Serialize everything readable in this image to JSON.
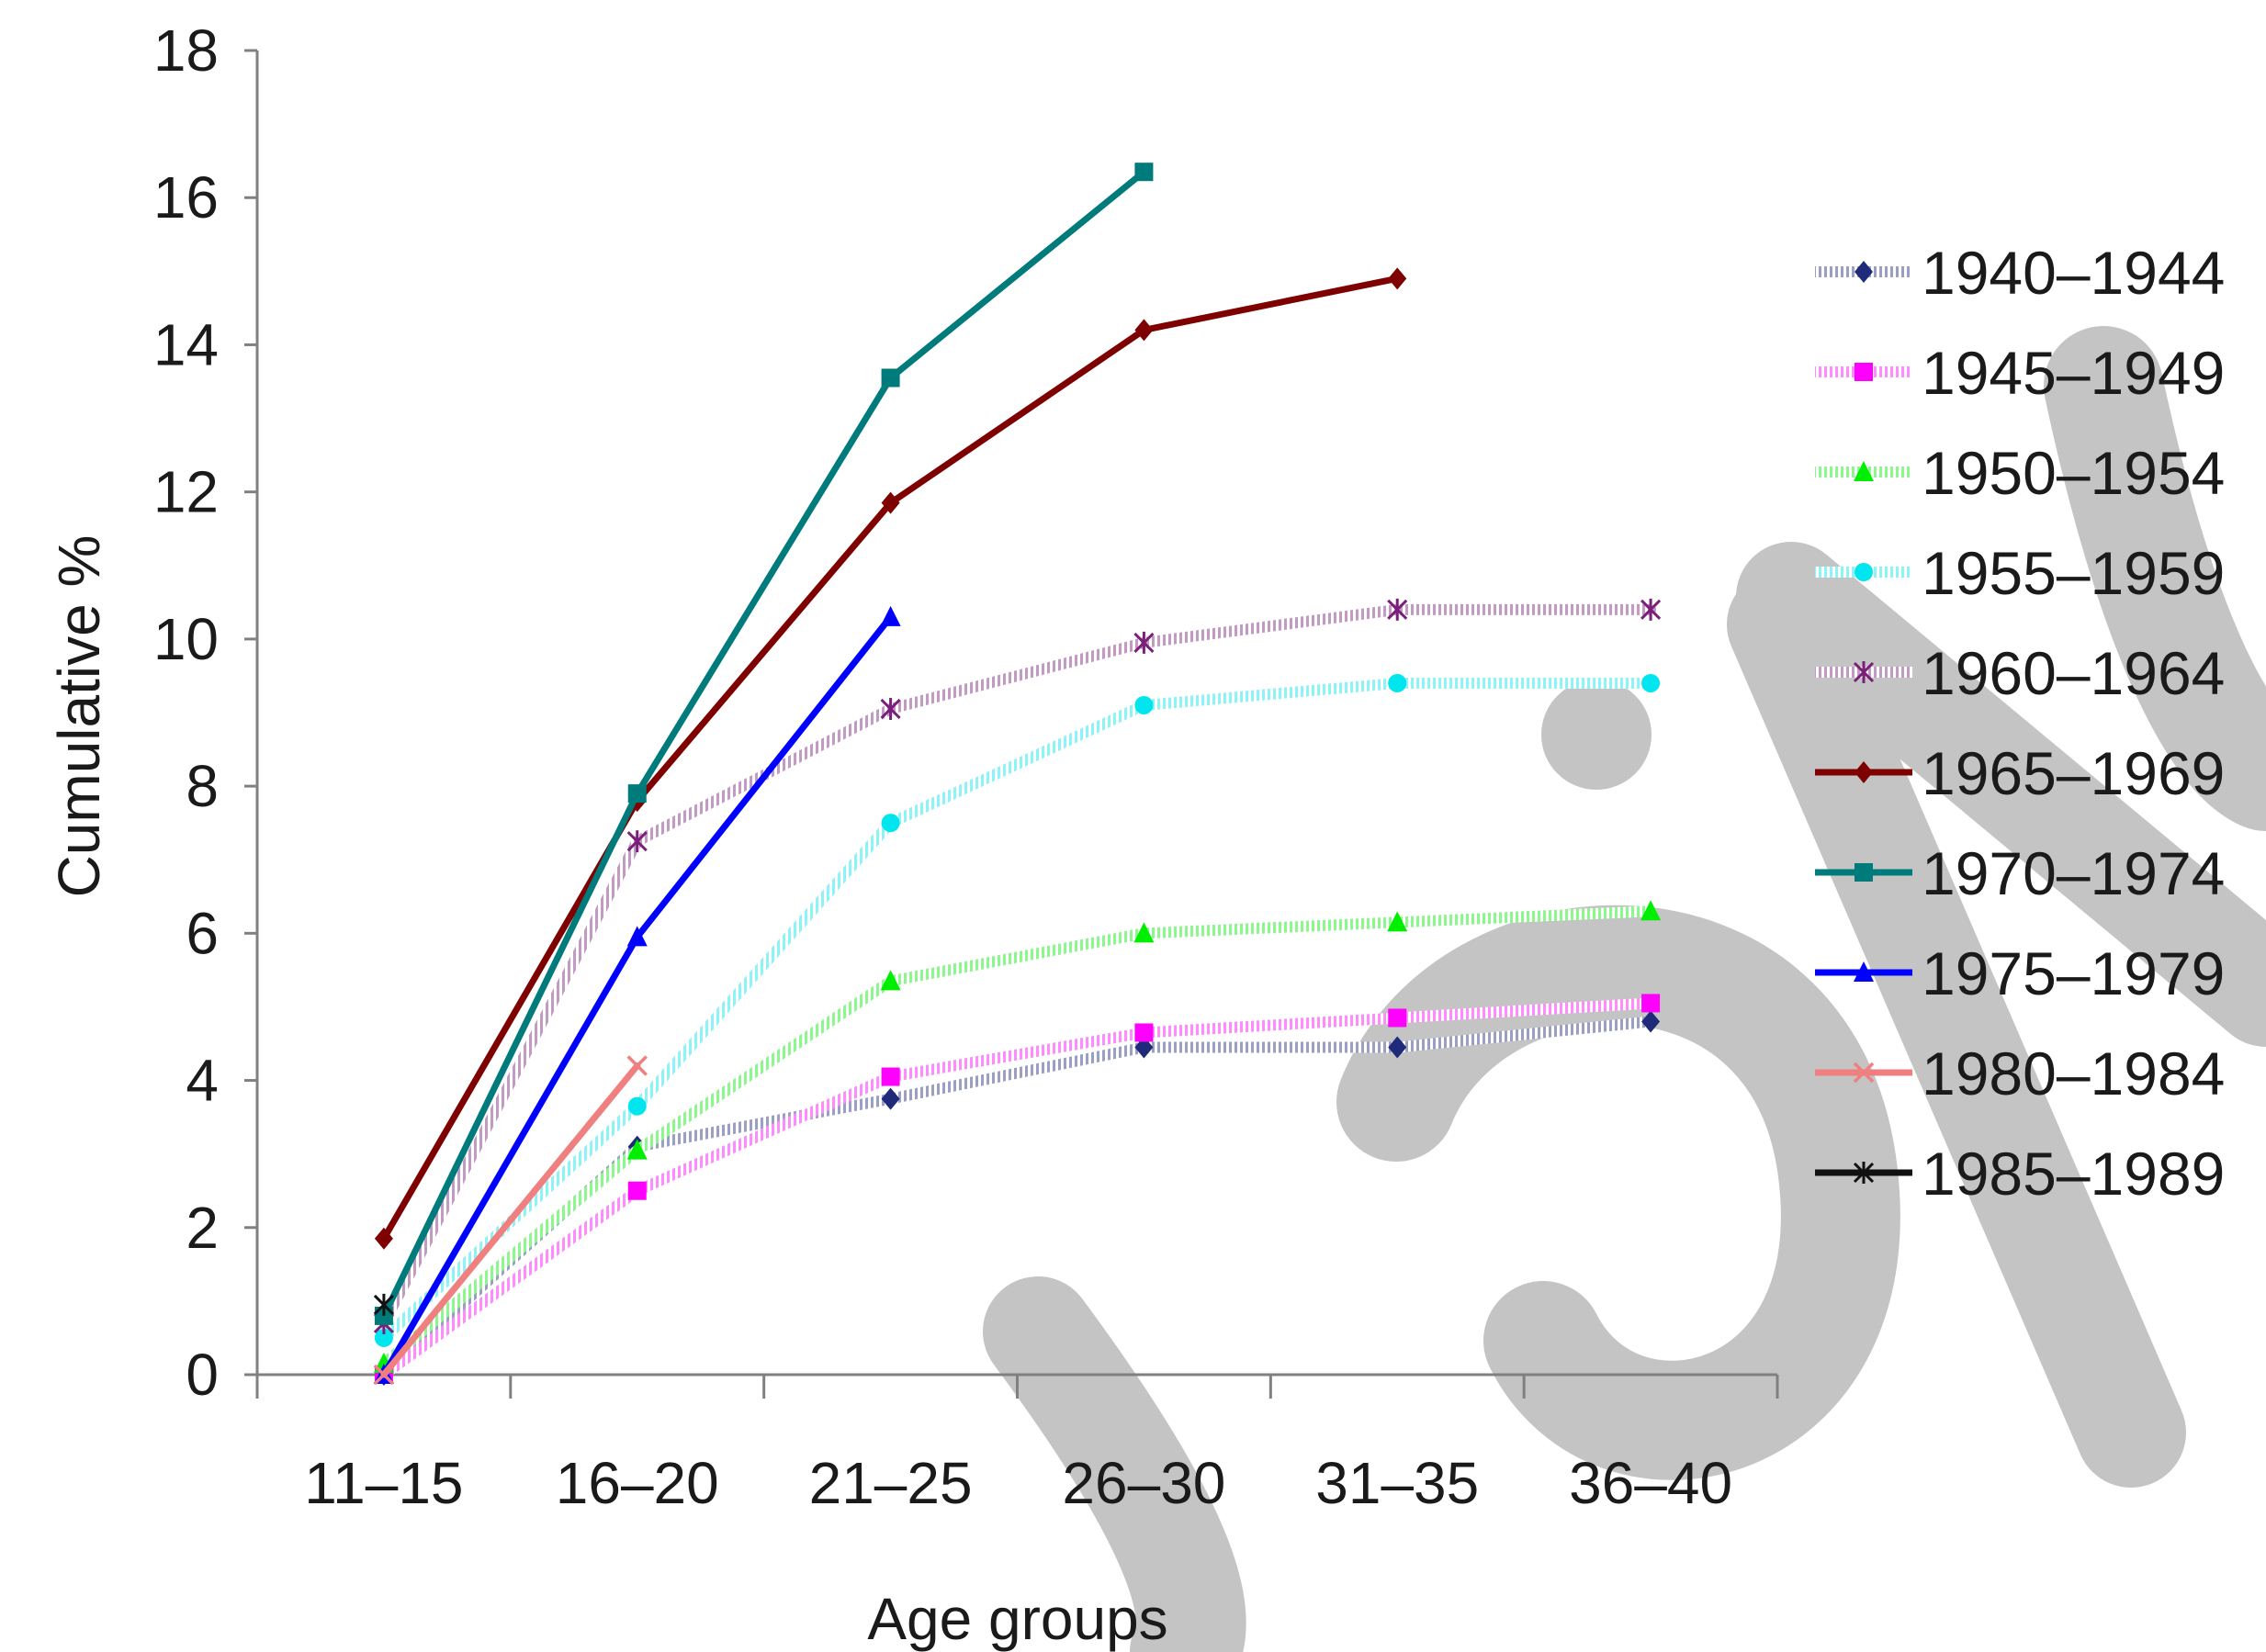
{
  "chart_data": {
    "type": "line",
    "title": "",
    "xlabel": "Age groups",
    "ylabel": "Cumulative %",
    "categories": [
      "11–15",
      "16–20",
      "21–25",
      "26–30",
      "31–35",
      "36–40"
    ],
    "ylim": [
      0,
      18
    ],
    "yticks": [
      "0",
      "2",
      "4",
      "6",
      "8",
      "10",
      "12",
      "14",
      "16",
      "18"
    ],
    "grid": false,
    "legend_position": "right",
    "series": [
      {
        "name": "1940–1944",
        "color": "#1f2a7a",
        "style": "hatched",
        "marker": "diamond",
        "values": [
          0.0,
          3.1,
          3.75,
          4.45,
          4.45,
          4.8
        ]
      },
      {
        "name": "1945–1949",
        "color": "#ff00ff",
        "style": "hatched",
        "marker": "square",
        "values": [
          0.0,
          2.5,
          4.05,
          4.65,
          4.85,
          5.05
        ]
      },
      {
        "name": "1950–1954",
        "color": "#00ee00",
        "style": "hatched",
        "marker": "triangle",
        "values": [
          0.15,
          3.05,
          5.35,
          6.0,
          6.15,
          6.3
        ]
      },
      {
        "name": "1955–1959",
        "color": "#00e5ee",
        "style": "hatched",
        "marker": "circle",
        "values": [
          0.5,
          3.65,
          7.5,
          9.1,
          9.4,
          9.4
        ]
      },
      {
        "name": "1960–1964",
        "color": "#7a1f7a",
        "style": "hatched",
        "marker": "asterisk",
        "values": [
          0.7,
          7.25,
          9.05,
          9.95,
          10.4,
          10.4
        ]
      },
      {
        "name": "1965–1969",
        "color": "#7f0000",
        "style": "solid",
        "marker": "diamond",
        "values": [
          1.85,
          7.8,
          11.85,
          14.2,
          14.9,
          null
        ]
      },
      {
        "name": "1970–1974",
        "color": "#007b7b",
        "style": "solid",
        "marker": "square",
        "values": [
          0.8,
          7.9,
          13.55,
          16.35,
          null,
          null
        ]
      },
      {
        "name": "1975–1979",
        "color": "#0000ff",
        "style": "solid",
        "marker": "triangle",
        "values": [
          0.0,
          5.95,
          10.3,
          null,
          null,
          null
        ]
      },
      {
        "name": "1980–1984",
        "color": "#f08080",
        "style": "solid",
        "marker": "x",
        "values": [
          0.0,
          4.2,
          null,
          null,
          null,
          null
        ]
      },
      {
        "name": "1985–1989",
        "color": "#111111",
        "style": "solid",
        "marker": "asterisk",
        "values": [
          0.95,
          null,
          null,
          null,
          null,
          null
        ]
      }
    ]
  }
}
